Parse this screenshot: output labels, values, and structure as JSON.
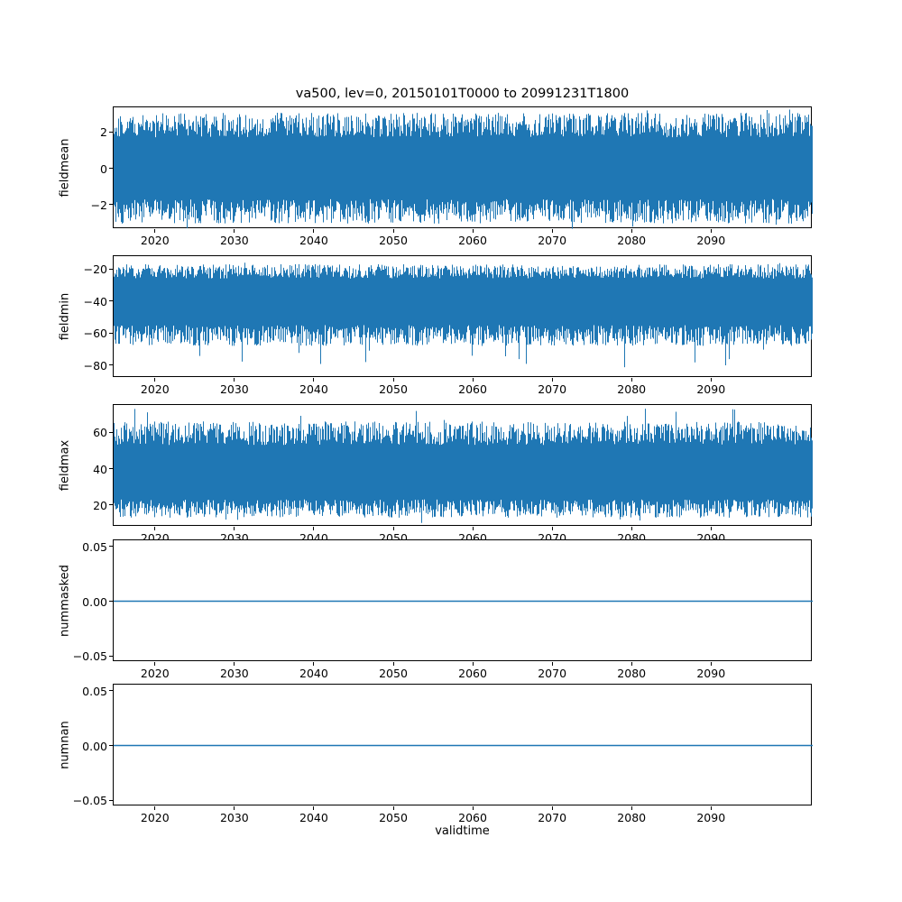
{
  "chart_data": {
    "type": "line",
    "title": "va500, lev=0, 20150101T0000 to 20991231T1800",
    "xlabel": "validtime",
    "line_color": "#1f77b4",
    "xlim": [
      2014.8,
      2102.8
    ],
    "x_ticks": [
      {
        "value": 2020,
        "label": "2020"
      },
      {
        "value": 2030,
        "label": "2030"
      },
      {
        "value": 2040,
        "label": "2040"
      },
      {
        "value": 2050,
        "label": "2050"
      },
      {
        "value": 2060,
        "label": "2060"
      },
      {
        "value": 2070,
        "label": "2070"
      },
      {
        "value": 2080,
        "label": "2080"
      },
      {
        "value": 2090,
        "label": "2090"
      }
    ],
    "subplots": [
      {
        "ylabel": "fieldmean",
        "ylim": [
          -3.35,
          3.35
        ],
        "seed": 101,
        "y_ticks": [
          {
            "value": 2,
            "label": "2"
          },
          {
            "value": 0,
            "label": "0"
          },
          {
            "value": -2,
            "label": "−2"
          }
        ],
        "noise": {
          "top": [
            1.7,
            3.05
          ],
          "bottom": [
            -3.05,
            -1.7
          ],
          "spike_top": 0.3,
          "spike_bottom": 0.3,
          "spike_prob": 0.02
        },
        "approx_range": [
          -3.3,
          3.3
        ]
      },
      {
        "ylabel": "fieldmin",
        "ylim": [
          -88,
          -12
        ],
        "seed": 202,
        "y_ticks": [
          {
            "value": -20,
            "label": "−20"
          },
          {
            "value": -40,
            "label": "−40"
          },
          {
            "value": -60,
            "label": "−60"
          },
          {
            "value": -80,
            "label": "−80"
          }
        ],
        "noise": {
          "top": [
            -26,
            -17
          ],
          "bottom": [
            -68,
            -55
          ],
          "spike_top": 2,
          "spike_bottom": 15,
          "spike_prob": 0.02
        },
        "approx_range": [
          -85,
          -15
        ]
      },
      {
        "ylabel": "fieldmax",
        "ylim": [
          8,
          75
        ],
        "seed": 303,
        "y_ticks": [
          {
            "value": 60,
            "label": "60"
          },
          {
            "value": 40,
            "label": "40"
          },
          {
            "value": 20,
            "label": "20"
          }
        ],
        "noise": {
          "top": [
            53,
            66
          ],
          "bottom": [
            13,
            23
          ],
          "spike_top": 7,
          "spike_bottom": 3,
          "spike_prob": 0.02
        },
        "approx_range": [
          12,
          73
        ]
      },
      {
        "ylabel": "nummasked",
        "ylim": [
          -0.0557,
          0.0557
        ],
        "flat_value": 0,
        "y_ticks": [
          {
            "value": 0.05,
            "label": "0.05"
          },
          {
            "value": 0.0,
            "label": "0.00"
          },
          {
            "value": -0.05,
            "label": "−0.05"
          }
        ],
        "approx_range": [
          0,
          0
        ]
      },
      {
        "ylabel": "numnan",
        "ylim": [
          -0.0557,
          0.0557
        ],
        "flat_value": 0,
        "y_ticks": [
          {
            "value": 0.05,
            "label": "0.05"
          },
          {
            "value": 0.0,
            "label": "0.00"
          },
          {
            "value": -0.05,
            "label": "−0.05"
          }
        ],
        "approx_range": [
          0,
          0
        ]
      }
    ]
  }
}
